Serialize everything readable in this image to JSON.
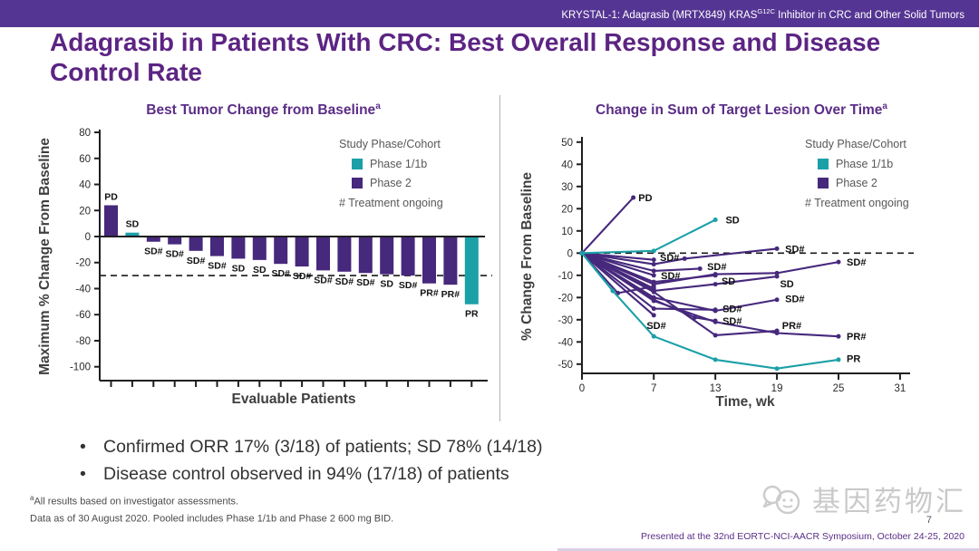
{
  "header": {
    "text_prefix": "KRYSTAL-1: Adagrasib (MRTX849) KRAS",
    "text_sup": "G12C",
    "text_suffix": " Inhibitor in CRC and Other Solid Tumors"
  },
  "title": "Adagrasib in Patients With CRC: Best Overall Response and Disease Control Rate",
  "colors": {
    "phase1": "#1BA0A8",
    "phase2": "#46287C",
    "axis": "#1f1f21",
    "axisText": "#3F3F41",
    "chartTitle": "#5B2D86"
  },
  "legend": {
    "title": "Study Phase/Cohort",
    "items": [
      {
        "label": "Phase 1/1b",
        "phase": "phase1"
      },
      {
        "label": "Phase 2",
        "phase": "phase2"
      }
    ],
    "note": "# Treatment ongoing"
  },
  "chart_data": [
    {
      "type": "bar",
      "title": "Best Tumor Change from Baseline",
      "title_sup": "a",
      "xlabel": "Evaluable Patients",
      "ylabel": "Maximum % Change From Baseline",
      "ylim": [
        -100,
        80
      ],
      "yticks": [
        80,
        60,
        40,
        20,
        0,
        -20,
        -40,
        -60,
        -80,
        -100
      ],
      "dashed_line_y": -30,
      "bars": [
        {
          "value": 24,
          "label": "PD",
          "phase": "phase2"
        },
        {
          "value": 3,
          "label": "SD",
          "phase": "phase1"
        },
        {
          "value": -4,
          "label": "SD#",
          "phase": "phase2"
        },
        {
          "value": -6,
          "label": "SD#",
          "phase": "phase2"
        },
        {
          "value": -11,
          "label": "SD#",
          "phase": "phase2"
        },
        {
          "value": -15,
          "label": "SD#",
          "phase": "phase2"
        },
        {
          "value": -17,
          "label": "SD",
          "phase": "phase2"
        },
        {
          "value": -18,
          "label": "SD",
          "phase": "phase2"
        },
        {
          "value": -21,
          "label": "SD#",
          "phase": "phase2"
        },
        {
          "value": -23,
          "label": "SD#",
          "phase": "phase2"
        },
        {
          "value": -26,
          "label": "SD#",
          "phase": "phase2"
        },
        {
          "value": -27,
          "label": "SD#",
          "phase": "phase2"
        },
        {
          "value": -28,
          "label": "SD#",
          "phase": "phase2"
        },
        {
          "value": -29,
          "label": "SD",
          "phase": "phase2"
        },
        {
          "value": -30,
          "label": "SD#",
          "phase": "phase2"
        },
        {
          "value": -36,
          "label": "PR#",
          "phase": "phase2"
        },
        {
          "value": -37,
          "label": "PR#",
          "phase": "phase2"
        },
        {
          "value": -52,
          "label": "PR",
          "phase": "phase1"
        }
      ]
    },
    {
      "type": "line",
      "title": "Change in Sum of Target Lesion Over Time",
      "title_sup": "a",
      "xlabel": "Time, wk",
      "ylabel": "% Change From Baseline",
      "xlim": [
        0,
        31
      ],
      "ylim": [
        -50,
        50
      ],
      "xticks": [
        0,
        7,
        13,
        19,
        25,
        31
      ],
      "yticks": [
        50,
        40,
        30,
        20,
        10,
        0,
        -10,
        -20,
        -30,
        -40,
        -50
      ],
      "dashed_line_y": 0,
      "series": [
        {
          "label": "PD",
          "phase": "phase2",
          "points": [
            [
              0,
              0
            ],
            [
              5,
              25
            ]
          ],
          "label_at": [
            5.5,
            25
          ]
        },
        {
          "label": "SD",
          "phase": "phase1",
          "points": [
            [
              0,
              0
            ],
            [
              7,
              1
            ],
            [
              13,
              15
            ]
          ],
          "label_at": [
            14,
            15
          ]
        },
        {
          "label": "SD#",
          "phase": "phase2",
          "points": [
            [
              0,
              0
            ],
            [
              7,
              -3
            ]
          ],
          "label_at": [
            7.6,
            -2
          ]
        },
        {
          "label": "SD#",
          "phase": "phase2",
          "points": [
            [
              0,
              0
            ],
            [
              7,
              -5
            ],
            [
              10,
              -2.5
            ],
            [
              19,
              2
            ]
          ],
          "label_at": [
            19.8,
            2
          ]
        },
        {
          "label": "SD#",
          "phase": "phase2",
          "points": [
            [
              0,
              0
            ],
            [
              7,
              -8
            ],
            [
              11.5,
              -7
            ]
          ],
          "label_at": [
            12.2,
            -6
          ]
        },
        {
          "label": "SD#",
          "phase": "phase2",
          "points": [
            [
              0,
              0
            ],
            [
              7,
              -14
            ],
            [
              13,
              -9.5
            ],
            [
              19,
              -9
            ],
            [
              25,
              -4
            ]
          ],
          "label_at": [
            25.8,
            -4
          ]
        },
        {
          "label": "SD#",
          "phase": "phase2",
          "points": [
            [
              0,
              0
            ],
            [
              7,
              -10
            ]
          ],
          "label_at": [
            7.7,
            -10
          ]
        },
        {
          "label": "SD",
          "phase": "phase2",
          "points": [
            [
              0,
              0
            ],
            [
              7,
              -13
            ],
            [
              13,
              -10
            ]
          ],
          "label_at": [
            13.6,
            -12.5
          ]
        },
        {
          "label": "SD",
          "phase": "phase2",
          "points": [
            [
              0,
              0
            ],
            [
              7,
              -17
            ],
            [
              13,
              -14
            ],
            [
              19,
              -10.5
            ]
          ],
          "label_at": [
            19.3,
            -13.8
          ]
        },
        {
          "label": "SD#",
          "phase": "phase2",
          "points": [
            [
              0,
              0
            ],
            [
              7,
              -20
            ],
            [
              13,
              -26
            ],
            [
              19,
              -21
            ]
          ],
          "label_at": [
            19.8,
            -20.5
          ]
        },
        {
          "label": "SD#",
          "phase": "phase2",
          "points": [
            [
              0,
              0
            ],
            [
              7,
              -25
            ],
            [
              13,
              -25.5
            ]
          ],
          "label_at": [
            13.7,
            -25
          ]
        },
        {
          "label": "SD#",
          "phase": "phase2",
          "points": [
            [
              0,
              0
            ],
            [
              7,
              -21
            ],
            [
              11,
              -29
            ],
            [
              13,
              -30.5
            ]
          ],
          "label_at": [
            13.7,
            -30.5
          ]
        },
        {
          "label": "SD#",
          "phase": "phase2",
          "points": [
            [
              0,
              0
            ],
            [
              7,
              -28
            ]
          ],
          "label_at": [
            6.3,
            -32.5
          ]
        },
        {
          "label": "",
          "phase": "phase2",
          "points": [
            [
              0,
              0
            ],
            [
              3.5,
              -18
            ],
            [
              7,
              -15
            ]
          ],
          "label_at": null
        },
        {
          "label": "",
          "phase": "phase2",
          "points": [
            [
              0,
              0
            ],
            [
              7,
              -16
            ]
          ],
          "label_at": null
        },
        {
          "label": "PR#",
          "phase": "phase2",
          "points": [
            [
              0,
              0
            ],
            [
              7,
              -17.5
            ],
            [
              13,
              -37
            ],
            [
              19,
              -35
            ]
          ],
          "label_at": [
            19.5,
            -32.5
          ]
        },
        {
          "label": "PR#",
          "phase": "phase2",
          "points": [
            [
              0,
              0
            ],
            [
              7,
              -21.5
            ],
            [
              13,
              -31
            ],
            [
              19,
              -36
            ],
            [
              25,
              -37.5
            ]
          ],
          "label_at": [
            25.8,
            -37.5
          ]
        },
        {
          "label": "PR",
          "phase": "phase1",
          "points": [
            [
              0,
              0
            ],
            [
              3,
              -17
            ],
            [
              7,
              -37.5
            ],
            [
              13,
              -48
            ],
            [
              19,
              -52
            ],
            [
              25,
              -48
            ]
          ],
          "label_at": [
            25.8,
            -47.5
          ]
        }
      ]
    }
  ],
  "bullets": [
    "Confirmed ORR 17% (3/18) of patients; SD 78% (14/18)",
    "Disease control observed in 94% (17/18) of patients"
  ],
  "bullet_glyph": "•",
  "footnotes": [
    {
      "sup": "a",
      "text": "All results based on investigator assessments."
    },
    {
      "sup": "",
      "text": "Data as of 30 August 2020. Pooled includes Phase 1/1b and Phase 2 600 mg BID."
    }
  ],
  "watermark": "基因药物汇",
  "page_number": "7",
  "footer": "Presented at the 32nd EORTC-NCI-AACR Symposium, October 24-25, 2020"
}
